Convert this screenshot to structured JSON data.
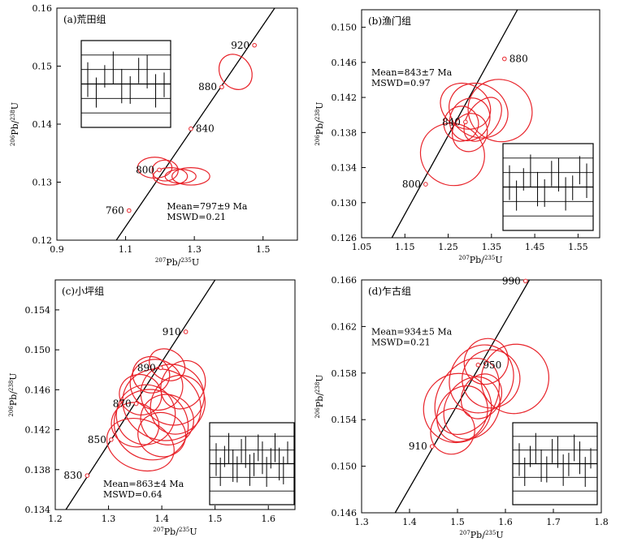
{
  "chart_data": [
    {
      "type": "scatter",
      "panel": "(a)",
      "title": "(a)荒田组",
      "xlabel": "207Pb/235U",
      "ylabel": "206Pb/238U",
      "xlim": [
        0.9,
        1.6
      ],
      "ylim": [
        0.12,
        0.16
      ],
      "xticks": [
        "0.9",
        "1.1",
        "1.3",
        "1.5"
      ],
      "yticks": [
        "0.12",
        "0.13",
        "0.14",
        "0.15",
        "0.16"
      ],
      "mean": "Mean=797±9 Ma",
      "mswd": "MSWD=0.21",
      "concordia_ages": [
        {
          "label": "760",
          "x": 1.11,
          "y": 0.1251
        },
        {
          "label": "800",
          "x": 1.198,
          "y": 0.1321
        },
        {
          "label": "840",
          "x": 1.29,
          "y": 0.1392
        },
        {
          "label": "880",
          "x": 1.38,
          "y": 0.1464
        },
        {
          "label": "920",
          "x": 1.475,
          "y": 0.1536
        }
      ],
      "ellipses": [
        {
          "cx": 1.42,
          "cy": 0.149,
          "rx": 0.045,
          "ry": 0.0032,
          "rot": -35
        },
        {
          "cx": 1.185,
          "cy": 0.1325,
          "rx": 0.05,
          "ry": 0.0018,
          "rot": 0
        },
        {
          "cx": 1.215,
          "cy": 0.132,
          "rx": 0.038,
          "ry": 0.0018,
          "rot": 0
        },
        {
          "cx": 1.23,
          "cy": 0.131,
          "rx": 0.05,
          "ry": 0.0015,
          "rot": 0
        },
        {
          "cx": 1.26,
          "cy": 0.131,
          "rx": 0.045,
          "ry": 0.0012,
          "rot": 0
        },
        {
          "cx": 1.29,
          "cy": 0.131,
          "rx": 0.055,
          "ry": 0.0015,
          "rot": 0
        }
      ],
      "inset_corner": "top-left"
    },
    {
      "type": "scatter",
      "panel": "(b)",
      "title": "(b)渔门组",
      "xlabel": "207Pb/235U",
      "ylabel": "206Pb/238U",
      "xlim": [
        1.05,
        1.6
      ],
      "ylim": [
        0.126,
        0.152
      ],
      "xticks": [
        "1.05",
        "1.15",
        "1.25",
        "1.35",
        "1.45",
        "1.55"
      ],
      "yticks": [
        "0.126",
        "0.130",
        "0.134",
        "0.138",
        "0.142",
        "0.146",
        "0.150"
      ],
      "mean": "Mean=843±7 Ma",
      "mswd": "MSWD=0.97",
      "concordia_ages": [
        {
          "label": "800",
          "x": 1.198,
          "y": 0.1321
        },
        {
          "label": "840",
          "x": 1.29,
          "y": 0.1392
        },
        {
          "label": "880",
          "x": 1.38,
          "y": 0.1464
        }
      ],
      "ellipses": [
        {
          "cx": 1.26,
          "cy": 0.1355,
          "rx": 0.075,
          "ry": 0.0035,
          "rot": 30
        },
        {
          "cx": 1.28,
          "cy": 0.139,
          "rx": 0.04,
          "ry": 0.002,
          "rot": 25
        },
        {
          "cx": 1.3,
          "cy": 0.1395,
          "rx": 0.045,
          "ry": 0.0025,
          "rot": 30
        },
        {
          "cx": 1.29,
          "cy": 0.141,
          "rx": 0.06,
          "ry": 0.0025,
          "rot": 30
        },
        {
          "cx": 1.32,
          "cy": 0.1405,
          "rx": 0.07,
          "ry": 0.003,
          "rot": 30
        },
        {
          "cx": 1.37,
          "cy": 0.1405,
          "rx": 0.075,
          "ry": 0.0035,
          "rot": 30
        },
        {
          "cx": 1.3,
          "cy": 0.138,
          "rx": 0.04,
          "ry": 0.0022,
          "rot": 20
        },
        {
          "cx": 1.33,
          "cy": 0.1395,
          "rx": 0.035,
          "ry": 0.0028,
          "rot": 35
        }
      ],
      "inset_corner": "bottom-right"
    },
    {
      "type": "scatter",
      "panel": "(c)",
      "title": "(c)小坪组",
      "xlabel": "207Pb/235U",
      "ylabel": "206Pb/238U",
      "xlim": [
        1.2,
        1.65
      ],
      "ylim": [
        0.134,
        0.157
      ],
      "xticks": [
        "1.2",
        "1.3",
        "1.4",
        "1.5",
        "1.6"
      ],
      "yticks": [
        "0.134",
        "0.138",
        "0.142",
        "0.146",
        "0.150",
        "0.154"
      ],
      "mean": "Mean=863±4 Ma",
      "mswd": "MSWD=0.64",
      "concordia_ages": [
        {
          "label": "830",
          "x": 1.26,
          "y": 0.1374
        },
        {
          "label": "850",
          "x": 1.305,
          "y": 0.141
        },
        {
          "label": "870",
          "x": 1.352,
          "y": 0.1446
        },
        {
          "label": "890",
          "x": 1.398,
          "y": 0.1482
        },
        {
          "label": "910",
          "x": 1.445,
          "y": 0.1518
        }
      ],
      "ellipses": [
        {
          "cx": 1.36,
          "cy": 0.1405,
          "rx": 0.065,
          "ry": 0.0025,
          "rot": 20
        },
        {
          "cx": 1.38,
          "cy": 0.1425,
          "rx": 0.07,
          "ry": 0.0035,
          "rot": 20
        },
        {
          "cx": 1.4,
          "cy": 0.1445,
          "rx": 0.075,
          "ry": 0.0035,
          "rot": 25
        },
        {
          "cx": 1.37,
          "cy": 0.1435,
          "rx": 0.055,
          "ry": 0.003,
          "rot": 20
        },
        {
          "cx": 1.42,
          "cy": 0.1455,
          "rx": 0.06,
          "ry": 0.003,
          "rot": 25
        },
        {
          "cx": 1.39,
          "cy": 0.1465,
          "rx": 0.05,
          "ry": 0.0025,
          "rot": 30
        },
        {
          "cx": 1.41,
          "cy": 0.143,
          "rx": 0.05,
          "ry": 0.0025,
          "rot": 20
        },
        {
          "cx": 1.36,
          "cy": 0.1455,
          "rx": 0.04,
          "ry": 0.002,
          "rot": 25
        },
        {
          "cx": 1.43,
          "cy": 0.1445,
          "rx": 0.05,
          "ry": 0.003,
          "rot": 25
        },
        {
          "cx": 1.38,
          "cy": 0.1475,
          "rx": 0.035,
          "ry": 0.0018,
          "rot": 30
        },
        {
          "cx": 1.4,
          "cy": 0.1415,
          "rx": 0.045,
          "ry": 0.0022,
          "rot": 15
        },
        {
          "cx": 1.44,
          "cy": 0.1465,
          "rx": 0.04,
          "ry": 0.0025,
          "rot": 30
        },
        {
          "cx": 1.35,
          "cy": 0.1425,
          "rx": 0.045,
          "ry": 0.0022,
          "rot": 20
        },
        {
          "cx": 1.41,
          "cy": 0.1485,
          "rx": 0.035,
          "ry": 0.0015,
          "rot": 30
        }
      ],
      "inset_corner": "bottom-right"
    },
    {
      "type": "scatter",
      "panel": "(d)",
      "title": "(d)乍古组",
      "xlabel": "207Pb/235U",
      "ylabel": "206Pb/238U",
      "xlim": [
        1.3,
        1.8
      ],
      "ylim": [
        0.146,
        0.166
      ],
      "xticks": [
        "1.3",
        "1.4",
        "1.5",
        "1.6",
        "1.7",
        "1.8"
      ],
      "yticks": [
        "0.146",
        "0.150",
        "0.154",
        "0.158",
        "0.162",
        "0.166"
      ],
      "mean": "Mean=934±5 Ma",
      "mswd": "MSWD=0.21",
      "concordia_ages": [
        {
          "label": "910",
          "x": 1.447,
          "y": 0.1517
        },
        {
          "label": "950",
          "x": 1.543,
          "y": 0.1587
        },
        {
          "label": "990",
          "x": 1.642,
          "y": 0.1659
        }
      ],
      "ellipses": [
        {
          "cx": 1.5,
          "cy": 0.155,
          "rx": 0.07,
          "ry": 0.003,
          "rot": 30
        },
        {
          "cx": 1.52,
          "cy": 0.156,
          "rx": 0.06,
          "ry": 0.0035,
          "rot": 30
        },
        {
          "cx": 1.55,
          "cy": 0.1575,
          "rx": 0.065,
          "ry": 0.003,
          "rot": 30
        },
        {
          "cx": 1.53,
          "cy": 0.155,
          "rx": 0.055,
          "ry": 0.0028,
          "rot": 30
        },
        {
          "cx": 1.57,
          "cy": 0.1575,
          "rx": 0.06,
          "ry": 0.0025,
          "rot": 25
        },
        {
          "cx": 1.62,
          "cy": 0.1575,
          "rx": 0.07,
          "ry": 0.003,
          "rot": 25
        },
        {
          "cx": 1.51,
          "cy": 0.1545,
          "rx": 0.05,
          "ry": 0.0025,
          "rot": 30
        },
        {
          "cx": 1.56,
          "cy": 0.159,
          "rx": 0.045,
          "ry": 0.002,
          "rot": 30
        },
        {
          "cx": 1.49,
          "cy": 0.153,
          "rx": 0.045,
          "ry": 0.002,
          "rot": 30
        },
        {
          "cx": 1.55,
          "cy": 0.156,
          "rx": 0.04,
          "ry": 0.002,
          "rot": 30
        }
      ],
      "inset_corner": "bottom-right"
    }
  ],
  "colors": {
    "ellipse": "#e8232a",
    "concordia": "#000000",
    "age_marker": "#e8232a",
    "axes": "#000000"
  }
}
